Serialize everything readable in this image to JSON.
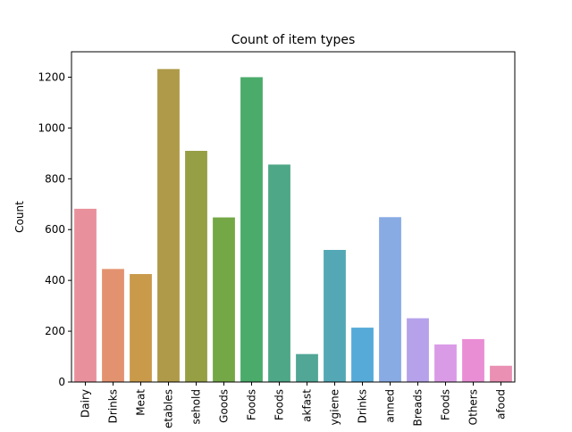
{
  "chart_data": {
    "type": "bar",
    "title": "Count of item types",
    "xlabel": "",
    "ylabel": "Count",
    "ylim": [
      0,
      1300
    ],
    "yticks": [
      0,
      200,
      400,
      600,
      800,
      1000,
      1200
    ],
    "grid": false,
    "categories": [
      "Dairy",
      "Drinks",
      "Meat",
      "etables",
      "sehold",
      "Goods",
      "Foods",
      "Foods",
      "akfast",
      "ygiene",
      "Drinks",
      "anned",
      "Breads",
      "Foods",
      "Others",
      "afood"
    ],
    "values": [
      682,
      445,
      425,
      1232,
      910,
      648,
      1200,
      856,
      110,
      520,
      214,
      649,
      251,
      148,
      169,
      64
    ],
    "colors": [
      "#e8919c",
      "#e39270",
      "#c99a4a",
      "#ae9a48",
      "#979f45",
      "#74a846",
      "#4aab6a",
      "#4ea787",
      "#51a696",
      "#54a8b6",
      "#55aad8",
      "#89abe4",
      "#b5a2ea",
      "#da9be6",
      "#e98ed4",
      "#ea90b3"
    ]
  }
}
